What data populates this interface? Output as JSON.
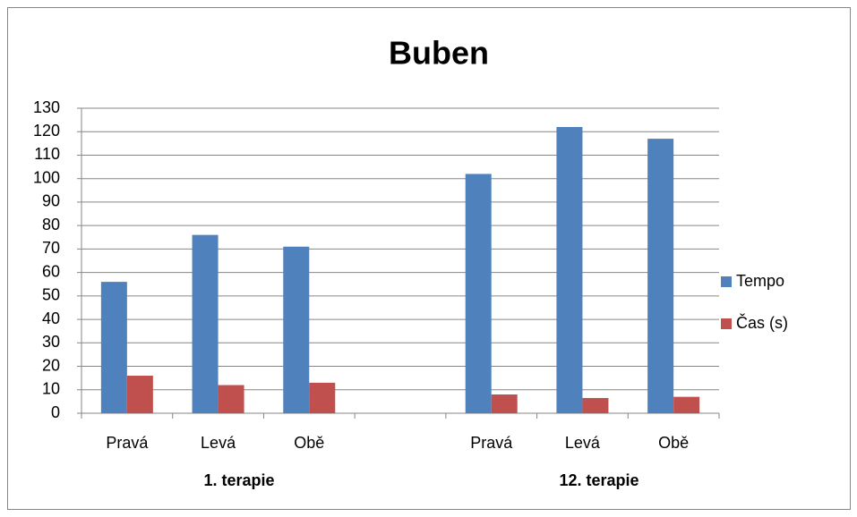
{
  "chart_data": {
    "type": "bar",
    "title": "Buben",
    "categories": [
      "Pravá",
      "Levá",
      "Obě",
      null,
      "Pravá",
      "Levá",
      "Obě"
    ],
    "group_labels": [
      "1. terapie",
      "12. terapie"
    ],
    "series": [
      {
        "name": "Tempo",
        "color": "#4f81bd",
        "values": [
          56,
          76,
          71,
          null,
          102,
          122,
          117
        ]
      },
      {
        "name": "Čas (s)",
        "color": "#c0504d",
        "values": [
          16,
          12,
          13,
          null,
          8,
          6.5,
          7
        ]
      }
    ],
    "ylim": [
      0,
      130
    ],
    "yticks": [
      0,
      10,
      20,
      30,
      40,
      50,
      60,
      70,
      80,
      90,
      100,
      110,
      120,
      130
    ],
    "grid": true,
    "legend": "right"
  }
}
